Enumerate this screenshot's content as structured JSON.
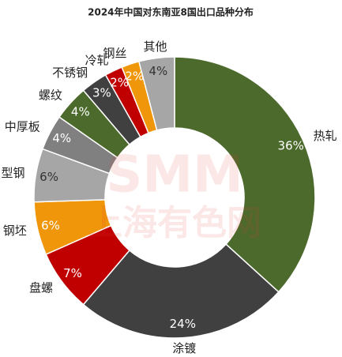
{
  "chart_data": {
    "type": "pie",
    "title": "2024年中国对东南亚8国出口品种分布",
    "categories": [
      "热轧",
      "涂镀",
      "盘螺",
      "钢坯",
      "型钢",
      "中厚板",
      "螺纹",
      "不锈钢",
      "冷轧",
      "钢丝",
      "其他"
    ],
    "values": [
      36,
      24,
      7,
      6,
      6,
      4,
      4,
      3,
      2,
      2,
      4
    ],
    "value_labels": [
      "36%",
      "24%",
      "7%",
      "6%",
      "6%",
      "4%",
      "4%",
      "3%",
      "2%",
      "2%",
      "4%"
    ],
    "colors": [
      "#4b6a2b",
      "#404040",
      "#c00000",
      "#f0960a",
      "#a6a6a6",
      "#808080",
      "#4b6a2b",
      "#404040",
      "#c00000",
      "#f0960a",
      "#a6a6a6"
    ],
    "watermark": [
      "SMM",
      "上海有色网"
    ]
  }
}
